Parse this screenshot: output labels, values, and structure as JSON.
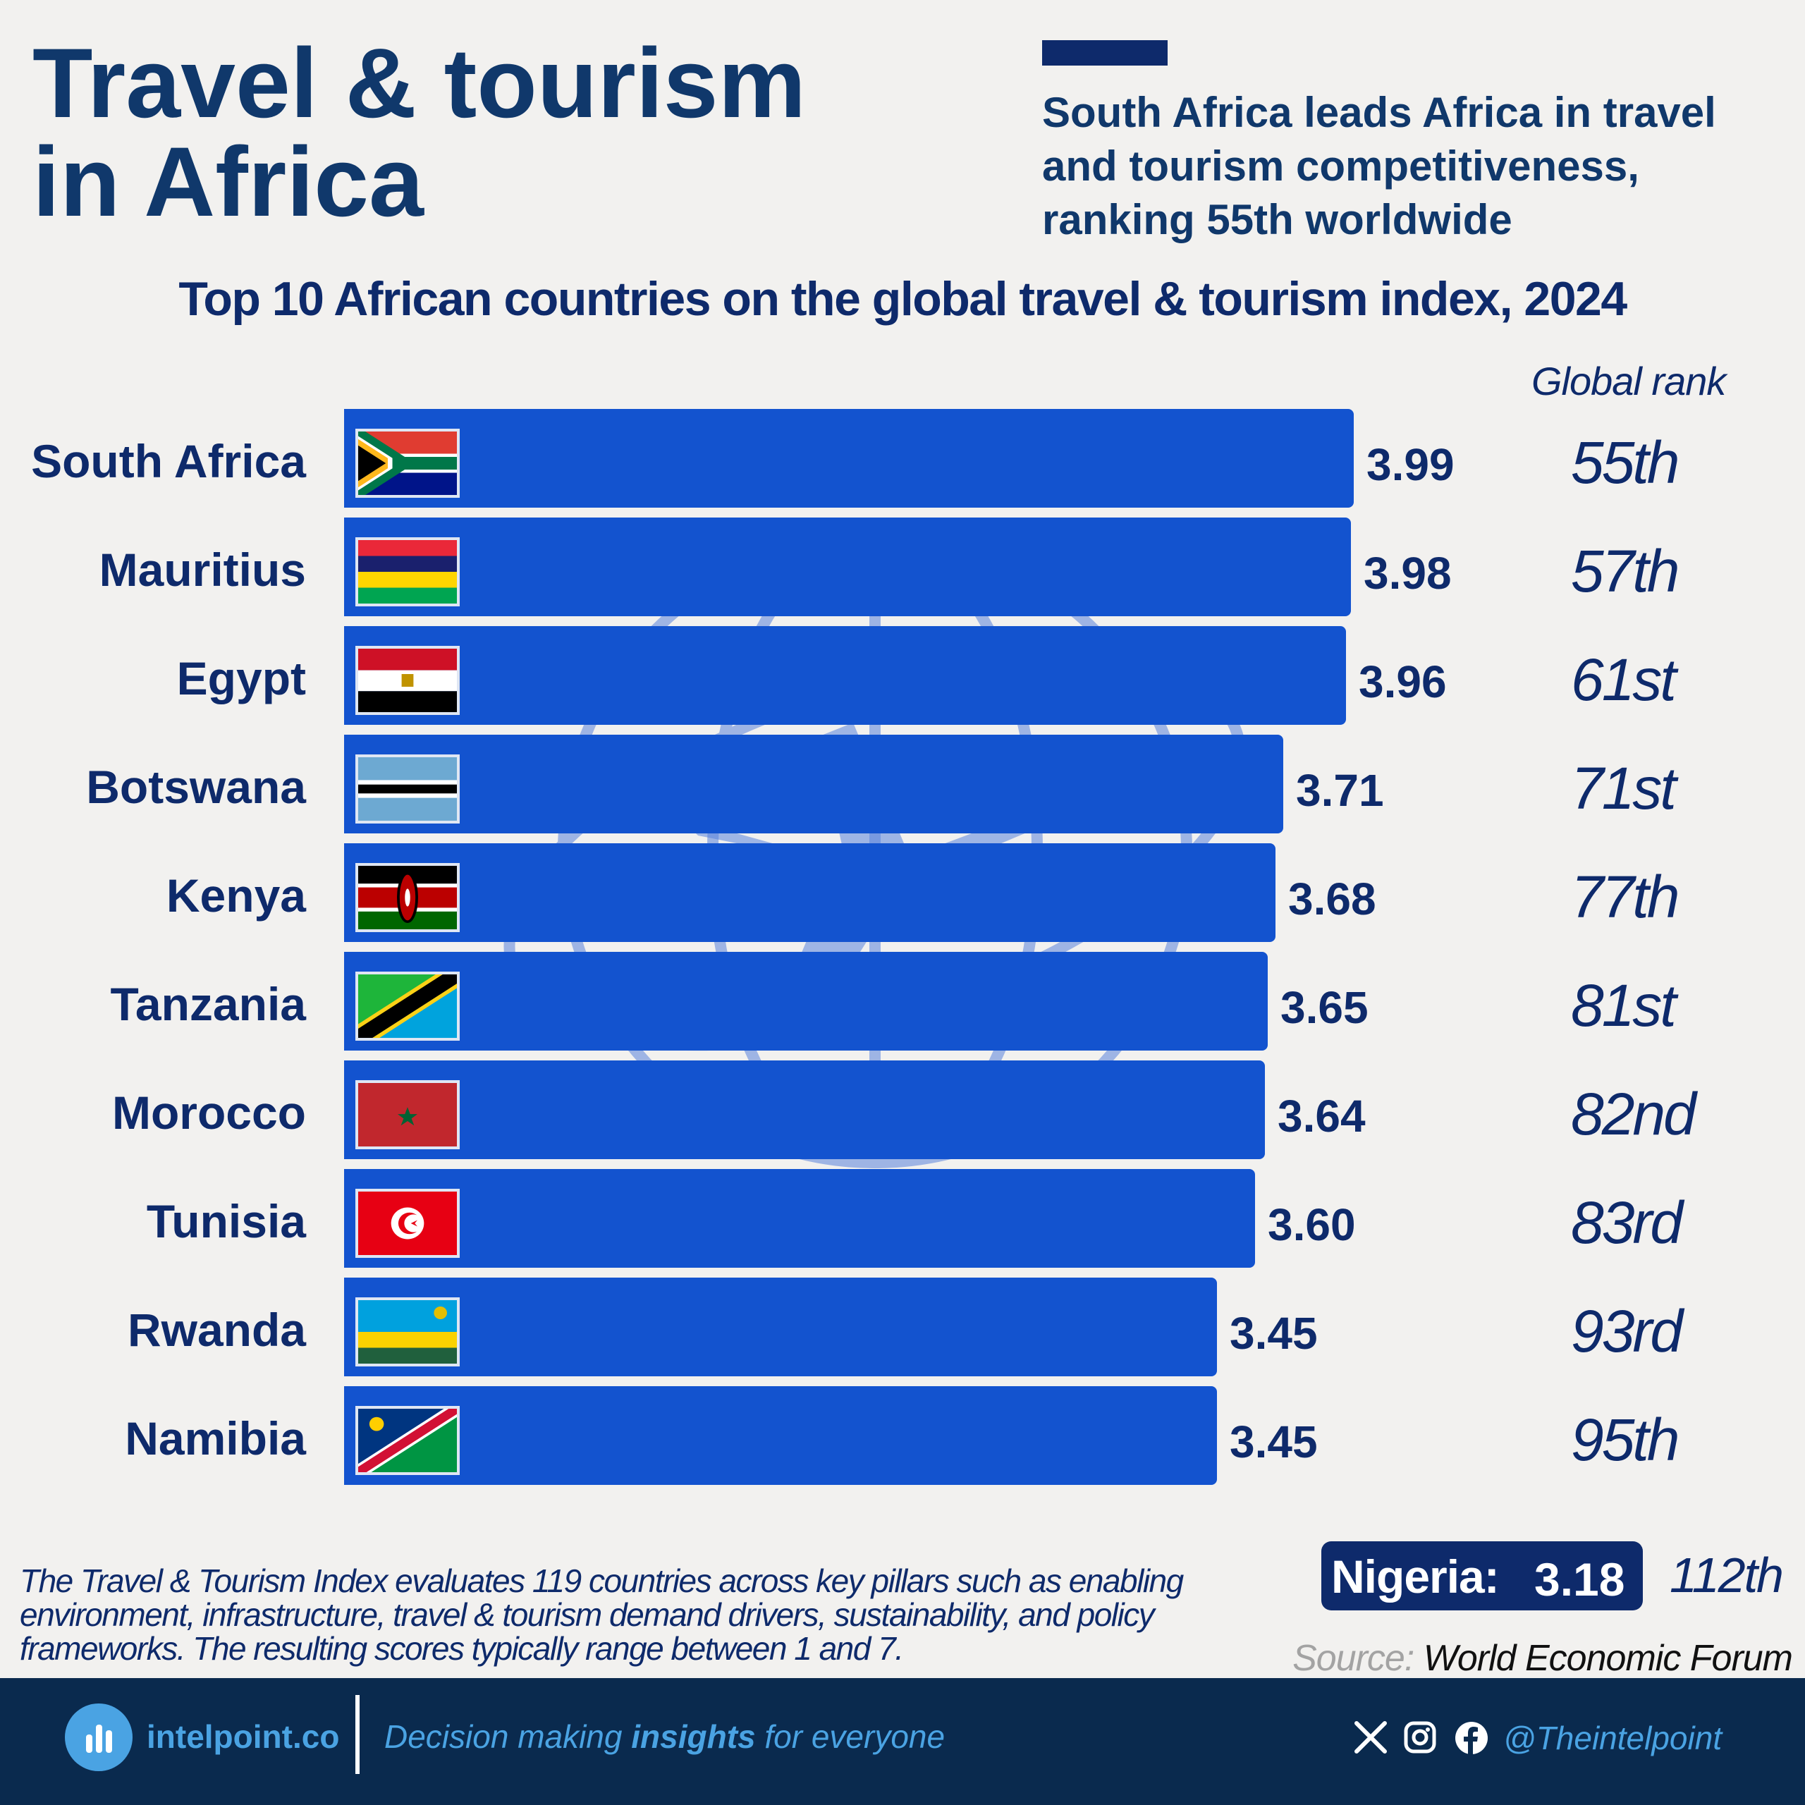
{
  "header": {
    "title_line1": "Travel & tourism",
    "title_line2": "in Africa",
    "subtitle": "South Africa leads Africa in travel and tourism competitiveness, ranking 55th worldwide"
  },
  "chart_data": {
    "type": "bar",
    "orientation": "horizontal",
    "title": "Top 10 African countries on the global travel & tourism index, 2024",
    "rank_header": "Global rank",
    "categories": [
      "South Africa",
      "Mauritius",
      "Egypt",
      "Botswana",
      "Kenya",
      "Tanzania",
      "Morocco",
      "Tunisia",
      "Rwanda",
      "Namibia"
    ],
    "values": [
      3.99,
      3.98,
      3.96,
      3.71,
      3.68,
      3.65,
      3.64,
      3.6,
      3.45,
      3.45
    ],
    "value_labels": [
      "3.99",
      "3.98",
      "3.96",
      "3.71",
      "3.68",
      "3.65",
      "3.64",
      "3.60",
      "3.45",
      "3.45"
    ],
    "ranks": [
      "55th",
      "57th",
      "61st",
      "71st",
      "77th",
      "81st",
      "82nd",
      "83rd",
      "93rd",
      "95th"
    ],
    "flags": [
      "south-africa",
      "mauritius",
      "egypt",
      "botswana",
      "kenya",
      "tanzania",
      "morocco",
      "tunisia",
      "rwanda",
      "namibia"
    ],
    "bar_color": "#1353cf",
    "grid": false
  },
  "nigeria": {
    "label": "Nigeria:",
    "value": "3.18",
    "rank": "112th"
  },
  "note": "The Travel & Tourism Index evaluates 119 countries across key pillars such as enabling environment, infrastructure, travel & tourism demand drivers, sustainability, and policy frameworks. The resulting scores typically range between 1 and 7.",
  "source": {
    "label": "Source:",
    "value": "World Economic Forum"
  },
  "footer": {
    "brand": "intelpoint.co",
    "tagline_pre": "Decision making ",
    "tagline_bold": "insights",
    "tagline_post": " for everyone",
    "handle": "@Theintelpoint",
    "icons": [
      "x-icon",
      "instagram-icon",
      "facebook-icon"
    ]
  },
  "colors": {
    "navy": "#0e2a6b",
    "footer_bg": "#0a2a4e",
    "accent_blue": "#4aa3e3",
    "background": "#f2f1ef"
  }
}
